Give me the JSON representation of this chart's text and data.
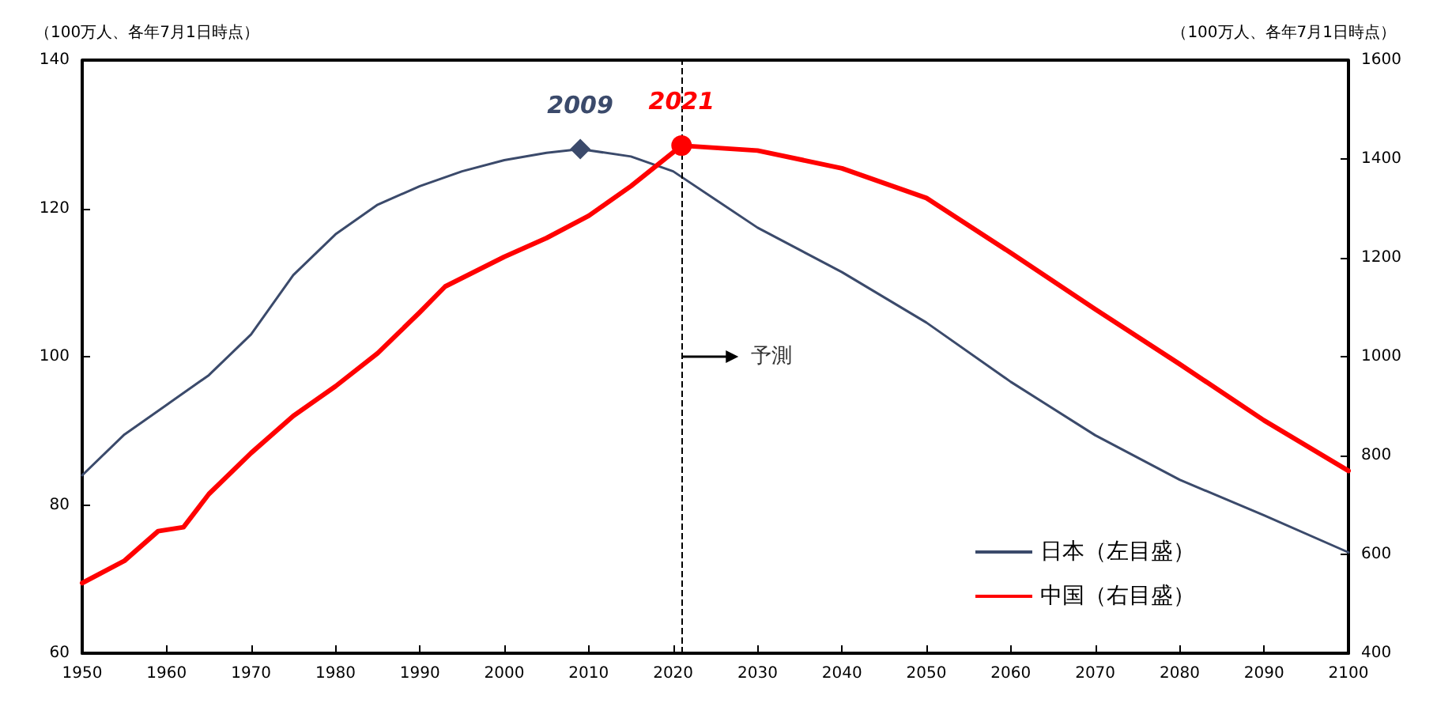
{
  "chart_data": {
    "type": "line",
    "ylabel": "（100万人、各年7月1日時点）",
    "y2label": "（100万人、各年7月1日時点）",
    "xlim": [
      1950,
      2100
    ],
    "xticks": [
      1950,
      1960,
      1970,
      1980,
      1990,
      2000,
      2010,
      2020,
      2030,
      2040,
      2050,
      2060,
      2070,
      2080,
      2090,
      2100
    ],
    "ylim": [
      60,
      140
    ],
    "yticks": [
      60,
      80,
      100,
      120,
      140
    ],
    "y2lim": [
      400,
      1600
    ],
    "y2ticks": [
      400,
      600,
      800,
      1000,
      1200,
      1400,
      1600
    ],
    "grid": false,
    "legend": "bottom right",
    "line_style": "solid",
    "series": [
      {
        "name": "日本（左目盛）",
        "color": "#3b4a6b",
        "x": [
          1950,
          1955,
          1960,
          1965,
          1970,
          1975,
          1980,
          1985,
          1990,
          1995,
          2000,
          2005,
          2009,
          2015,
          2020,
          2030,
          2040,
          2050,
          2060,
          2070,
          2080,
          2090,
          2100
        ],
        "values": [
          84,
          89.5,
          93.5,
          97.5,
          103,
          111,
          116.5,
          120.5,
          123,
          125,
          126.5,
          127.5,
          128,
          127,
          125,
          117.4,
          111.4,
          104.6,
          96.6,
          89.4,
          83.4,
          78.6,
          73.6
        ]
      },
      {
        "name": "中国（右目盛）",
        "color": "#ff0000",
        "axis": "y2",
        "x": [
          1950,
          1955,
          1959,
          1962,
          1965,
          1970,
          1975,
          1980,
          1985,
          1990,
          1993,
          2000,
          2005,
          2010,
          2015,
          2021,
          2030,
          2040,
          2050,
          2060,
          2070,
          2080,
          2090,
          2100
        ],
        "values": [
          542,
          587,
          647,
          655,
          722,
          805,
          880,
          940,
          1007,
          1090,
          1142,
          1202,
          1240,
          1285,
          1345,
          1427,
          1417,
          1381,
          1321,
          1210,
          1096,
          985,
          871,
          769
        ]
      },
      {
        "type": "scatter",
        "color": "#3b4a6b",
        "marker": "diamond",
        "x": [
          2009
        ],
        "values": [
          128
        ]
      },
      {
        "type": "scatter",
        "color": "#ff0000",
        "marker": "circle",
        "axis": "y2",
        "x": [
          2021
        ],
        "values": [
          1427
        ]
      }
    ],
    "annotations": [
      "2009",
      "2021"
    ],
    "ref_lines": [
      {
        "axis": "x",
        "value": 2021,
        "label": "予測",
        "line_style": "dashed",
        "color": "#000000"
      }
    ]
  }
}
